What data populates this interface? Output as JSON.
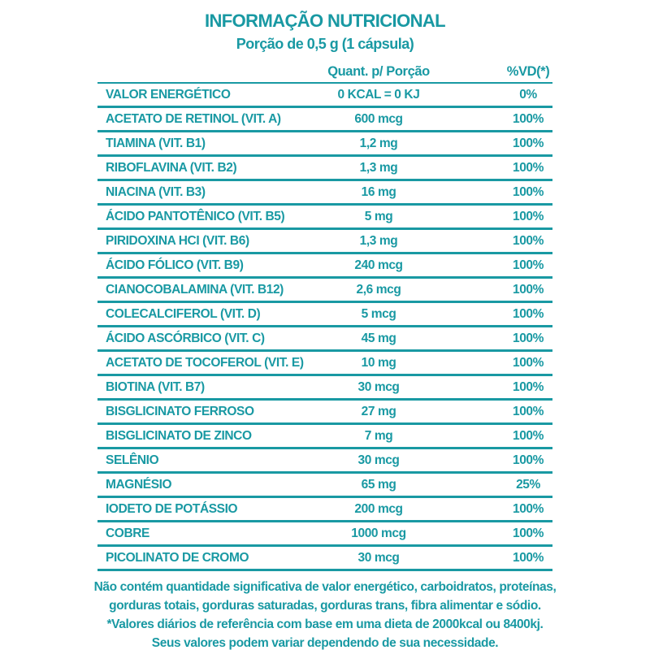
{
  "colors": {
    "accent": "#1999A3",
    "background": "#FFFFFF"
  },
  "header": {
    "title": "INFORMAÇÃO NUTRICIONAL",
    "subtitle": "Porção de 0,5 g (1 cápsula)"
  },
  "table": {
    "columns": {
      "quantity": "Quant. p/ Porção",
      "dv": "%VD(*)"
    },
    "rows": [
      {
        "label": "VALOR ENERGÉTICO",
        "quantity": "0 KCAL = 0 KJ",
        "dv": "0%"
      },
      {
        "label": "ACETATO DE RETINOL (VIT. A)",
        "quantity": "600 mcg",
        "dv": "100%"
      },
      {
        "label": "TIAMINA (VIT. B1)",
        "quantity": "1,2 mg",
        "dv": "100%"
      },
      {
        "label": "RIBOFLAVINA (VIT. B2)",
        "quantity": "1,3 mg",
        "dv": "100%"
      },
      {
        "label": "NIACINA (VIT. B3)",
        "quantity": "16 mg",
        "dv": "100%"
      },
      {
        "label": "ÁCIDO PANTOTÊNICO (VIT. B5)",
        "quantity": "5 mg",
        "dv": "100%"
      },
      {
        "label": "PIRIDOXINA HCI (VIT. B6)",
        "quantity": "1,3 mg",
        "dv": "100%"
      },
      {
        "label": "ÁCIDO FÓLICO (VIT. B9)",
        "quantity": "240 mcg",
        "dv": "100%"
      },
      {
        "label": "CIANOCOBALAMINA (VIT. B12)",
        "quantity": "2,6 mcg",
        "dv": "100%"
      },
      {
        "label": "COLECALCIFEROL (VIT. D)",
        "quantity": "5 mcg",
        "dv": "100%"
      },
      {
        "label": "ÁCIDO ASCÓRBICO (VIT. C)",
        "quantity": "45 mg",
        "dv": "100%"
      },
      {
        "label": "ACETATO DE TOCOFEROL (VIT. E)",
        "quantity": "10 mg",
        "dv": "100%"
      },
      {
        "label": "BIOTINA (VIT. B7)",
        "quantity": "30 mcg",
        "dv": "100%"
      },
      {
        "label": "BISGLICINATO FERROSO",
        "quantity": "27 mg",
        "dv": "100%"
      },
      {
        "label": "BISGLICINATO DE ZINCO",
        "quantity": "7 mg",
        "dv": "100%"
      },
      {
        "label": "SELÊNIO",
        "quantity": "30 mcg",
        "dv": "100%"
      },
      {
        "label": "MAGNÉSIO",
        "quantity": "65 mg",
        "dv": "25%"
      },
      {
        "label": "IODETO DE POTÁSSIO",
        "quantity": "200 mcg",
        "dv": "100%"
      },
      {
        "label": "COBRE",
        "quantity": "1000 mcg",
        "dv": "100%"
      },
      {
        "label": "PICOLINATO DE CROMO",
        "quantity": "30 mcg",
        "dv": "100%"
      }
    ]
  },
  "footnotes": [
    "Não contém quantidade significativa de valor energético, carboidratos, proteínas,",
    "gorduras totais, gorduras saturadas, gorduras trans, fibra alimentar e sódio.",
    "*Valores diários de referência com base em uma dieta de 2000kcal ou 8400kj.",
    "Seus valores podem variar dependendo de sua necessidade."
  ]
}
